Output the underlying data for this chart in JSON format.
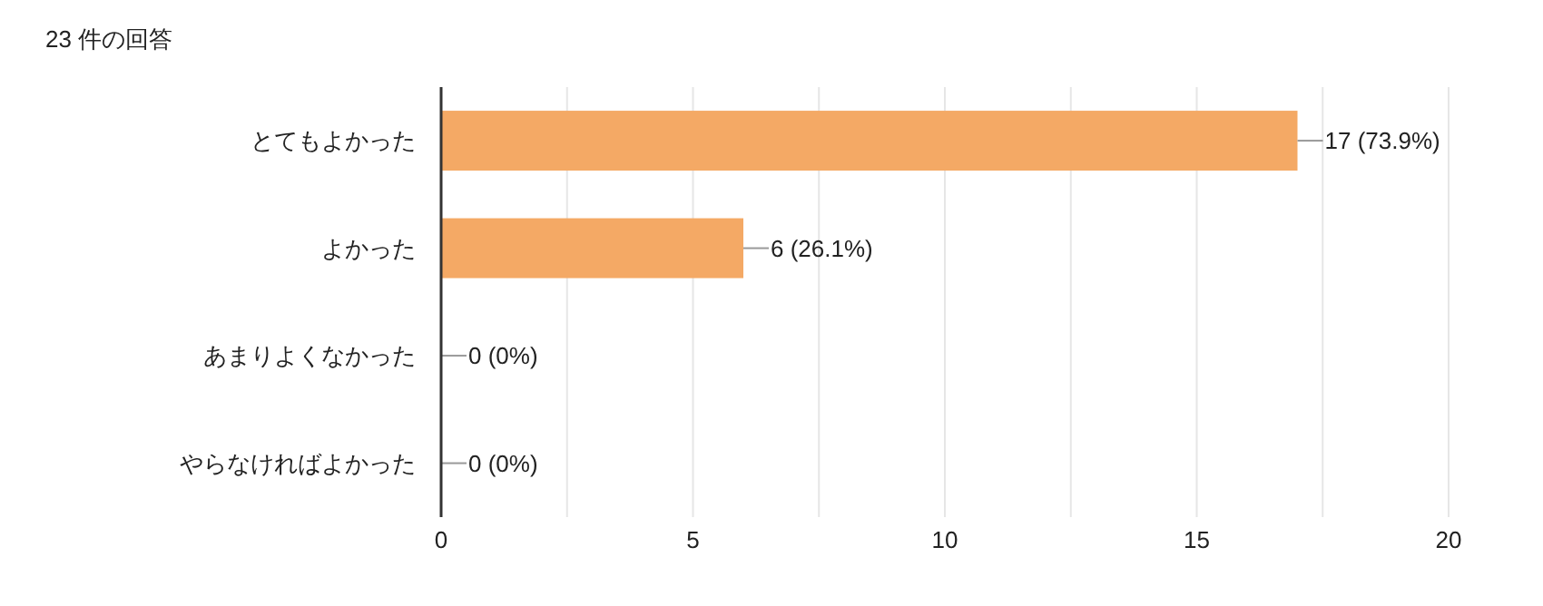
{
  "chart_data": {
    "type": "bar",
    "orientation": "horizontal",
    "title": "23 件の回答",
    "categories": [
      "とてもよかった",
      "よかった",
      "あまりよくなかった",
      "やらなければよかった"
    ],
    "values": [
      17,
      6,
      0,
      0
    ],
    "color": "#f4a965",
    "value_labels": [
      "17 (73.9%)",
      "6 (26.1%)",
      "0 (0%)",
      "0 (0%)"
    ],
    "xlim": [
      0,
      20
    ],
    "xticks": [
      0,
      {
        "value": 2.5,
        "label": null
      },
      5,
      {
        "value": 7.5,
        "label": null
      },
      10,
      {
        "value": 12.5,
        "label": null
      },
      15,
      {
        "value": 17.5,
        "label": null
      },
      20
    ],
    "grid": "x"
  }
}
